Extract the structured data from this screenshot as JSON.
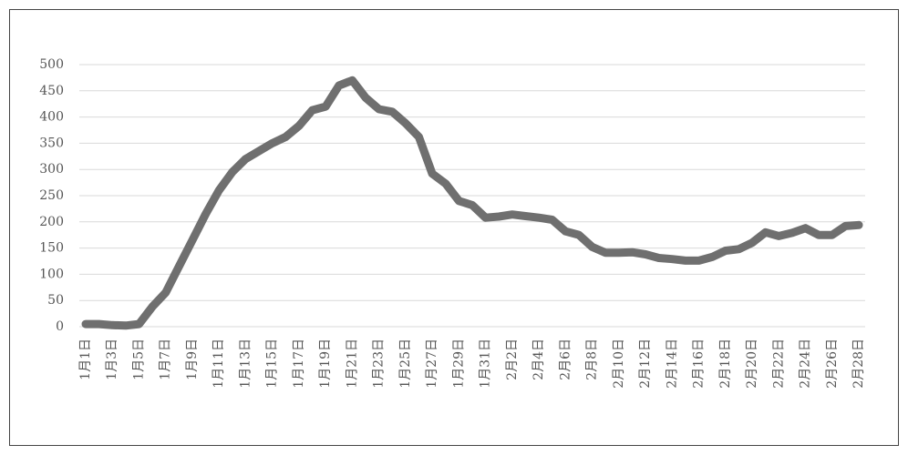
{
  "chart_data": {
    "type": "line",
    "categories": [
      "1月1日",
      null,
      "1月3日",
      null,
      "1月5日",
      null,
      "1月7日",
      null,
      "1月9日",
      null,
      "1月11日",
      null,
      "1月13日",
      null,
      "1月15日",
      null,
      "1月17日",
      null,
      "1月19日",
      null,
      "1月21日",
      null,
      "1月23日",
      null,
      "1月25日",
      null,
      "1月27日",
      null,
      "1月29日",
      null,
      "1月31日",
      null,
      "2月2日",
      null,
      "2月4日",
      null,
      "2月6日",
      null,
      "2月8日",
      null,
      "2月10日",
      null,
      "2月12日",
      null,
      "2月14日",
      null,
      "2月16日",
      null,
      "2月18日",
      null,
      "2月20日",
      null,
      "2月22日",
      null,
      "2月24日",
      null,
      "2月26日",
      null,
      "2月28日"
    ],
    "values": [
      5,
      5,
      3,
      2,
      5,
      38,
      65,
      115,
      165,
      215,
      260,
      295,
      320,
      335,
      350,
      362,
      383,
      413,
      420,
      460,
      470,
      437,
      415,
      410,
      388,
      362,
      292,
      273,
      240,
      232,
      208,
      210,
      214,
      211,
      208,
      204,
      182,
      175,
      152,
      141,
      141,
      142,
      138,
      131,
      129,
      126,
      126,
      133,
      145,
      148,
      160,
      180,
      173,
      179,
      188,
      175,
      175,
      192,
      194
    ],
    "color": "#6f6f6f",
    "ylim": [
      0,
      500
    ],
    "yticks": [
      0,
      50,
      100,
      150,
      200,
      250,
      300,
      350,
      400,
      450,
      500
    ],
    "grid": true
  }
}
